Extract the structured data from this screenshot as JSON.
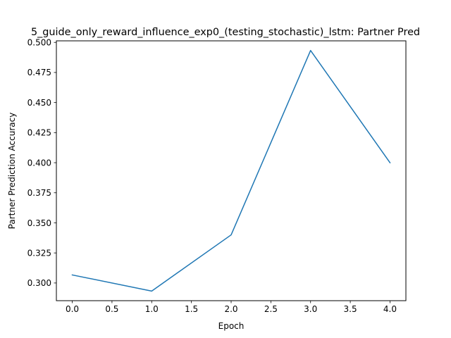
{
  "chart_data": {
    "type": "line",
    "title": "5_guide_only_reward_influence_exp0_(testing_stochastic)_lstm: Partner Pred",
    "xlabel": "Epoch",
    "ylabel": "Partner Prediction Accuracy",
    "x": [
      0,
      1,
      2,
      3,
      4
    ],
    "series": [
      {
        "values": [
          0.3067,
          0.2933,
          0.34,
          0.4933,
          0.4
        ]
      }
    ],
    "xlim": [
      -0.2,
      4.2
    ],
    "ylim": [
      0.2853,
      0.5013
    ],
    "xticks": [
      0.0,
      0.5,
      1.0,
      1.5,
      2.0,
      2.5,
      3.0,
      3.5,
      4.0
    ],
    "xtick_labels": [
      "0.0",
      "0.5",
      "1.0",
      "1.5",
      "2.0",
      "2.5",
      "3.0",
      "3.5",
      "4.0"
    ],
    "yticks": [
      0.3,
      0.325,
      0.35,
      0.375,
      0.4,
      0.425,
      0.45,
      0.475,
      0.5
    ],
    "ytick_labels": [
      "0.300",
      "0.325",
      "0.350",
      "0.375",
      "0.400",
      "0.425",
      "0.450",
      "0.475",
      "0.500"
    ],
    "grid": false,
    "line_color": "#1f77b4"
  }
}
